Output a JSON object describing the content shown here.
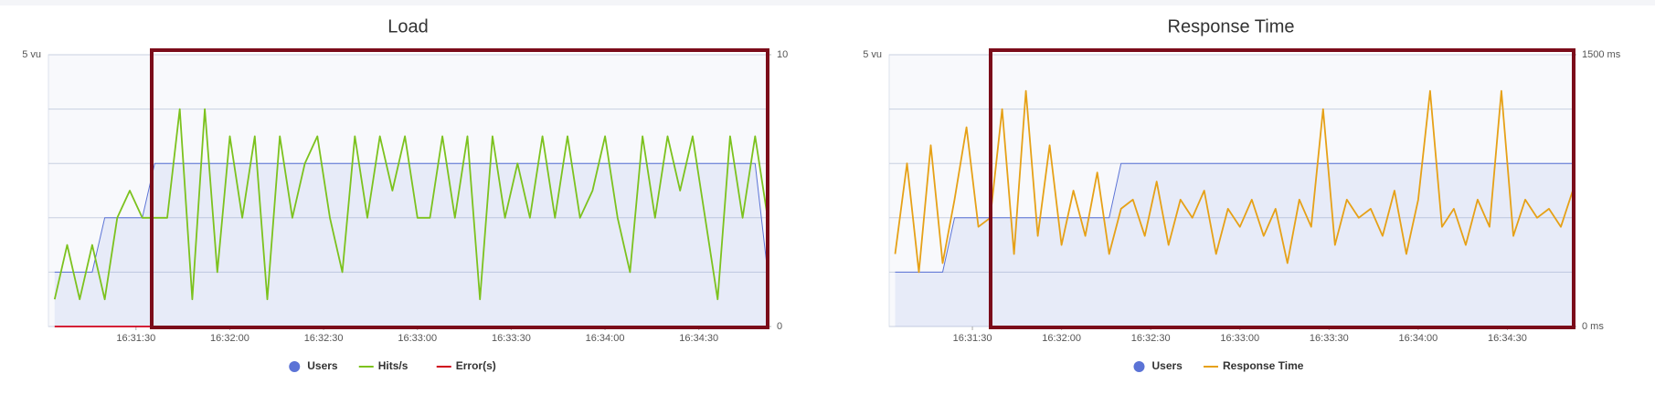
{
  "chart_data": [
    {
      "type": "line",
      "title": "Load",
      "x": [
        59464,
        59468,
        59472,
        59476,
        59480,
        59484,
        59488,
        59492,
        59496,
        59500,
        59504,
        59508,
        59512,
        59516,
        59520,
        59524,
        59528,
        59532,
        59536,
        59540,
        59544,
        59548,
        59552,
        59556,
        59560,
        59564,
        59568,
        59572,
        59576,
        59580,
        59584,
        59588,
        59592,
        59596,
        59600,
        59604,
        59608,
        59612,
        59616,
        59620,
        59624,
        59628,
        59632,
        59636,
        59640,
        59644,
        59648,
        59652,
        59656,
        59660,
        59664,
        59668,
        59672,
        59676,
        59680,
        59684,
        59688,
        59692
      ],
      "xlim": [
        59462,
        59692
      ],
      "xticks": [
        {
          "value": 59490,
          "label": "16:31:30"
        },
        {
          "value": 59520,
          "label": "16:32:00"
        },
        {
          "value": 59550,
          "label": "16:32:30"
        },
        {
          "value": 59580,
          "label": "16:33:00"
        },
        {
          "value": 59610,
          "label": "16:33:30"
        },
        {
          "value": 59640,
          "label": "16:34:00"
        },
        {
          "value": 59670,
          "label": "16:34:30"
        }
      ],
      "ylim": [
        0,
        5
      ],
      "yticks": [
        {
          "value": 0,
          "label": null
        },
        {
          "value": 1,
          "label": null
        },
        {
          "value": 2,
          "label": null
        },
        {
          "value": 3,
          "label": null
        },
        {
          "value": 4,
          "label": null
        },
        {
          "value": 5,
          "label": "5 vu"
        }
      ],
      "y2lim": [
        0,
        10
      ],
      "y2ticks": [
        0,
        10
      ],
      "series": [
        {
          "name": "Users",
          "color": "#5b73d6",
          "values": [
            1,
            1,
            1,
            1,
            2,
            2,
            2,
            2,
            3,
            3,
            3,
            3,
            3,
            3,
            3,
            3,
            3,
            3,
            3,
            3,
            3,
            3,
            3,
            3,
            3,
            3,
            3,
            3,
            3,
            3,
            3,
            3,
            3,
            3,
            3,
            3,
            3,
            3,
            3,
            3,
            3,
            3,
            3,
            3,
            3,
            3,
            3,
            3,
            3,
            3,
            3,
            3,
            3,
            3,
            3,
            3,
            3,
            1
          ]
        },
        {
          "name": "Hits/s",
          "color": "#7cc21e",
          "axis": "y2",
          "values": [
            1,
            3,
            1,
            3,
            1,
            4,
            5,
            4,
            4,
            4,
            8,
            1,
            8,
            2,
            7,
            4,
            7,
            1,
            7,
            4,
            6,
            7,
            4,
            2,
            7,
            4,
            7,
            5,
            7,
            4,
            4,
            7,
            4,
            7,
            1,
            7,
            4,
            6,
            4,
            7,
            4,
            7,
            4,
            5,
            7,
            4,
            2,
            7,
            4,
            7,
            5,
            7,
            4,
            1,
            7,
            4,
            7,
            4
          ]
        },
        {
          "name": "Error(s)",
          "color": "#d0021b",
          "axis": "y2",
          "values": [
            0,
            0,
            0,
            0,
            0,
            0,
            0,
            0,
            0,
            0,
            0,
            0,
            0,
            0,
            0,
            0,
            0,
            0,
            0,
            0,
            0,
            0,
            0,
            0,
            0,
            0,
            0,
            0,
            0,
            0,
            0,
            0,
            0,
            0,
            0,
            0,
            0,
            0,
            0,
            0,
            0,
            0,
            0,
            0,
            0,
            0,
            0,
            0,
            0,
            0,
            0,
            0,
            0,
            0,
            0,
            0,
            0,
            0
          ]
        }
      ]
    },
    {
      "type": "line",
      "title": "Response Time",
      "x": [
        59464,
        59468,
        59472,
        59476,
        59480,
        59484,
        59488,
        59492,
        59496,
        59500,
        59504,
        59508,
        59512,
        59516,
        59520,
        59524,
        59528,
        59532,
        59536,
        59540,
        59544,
        59548,
        59552,
        59556,
        59560,
        59564,
        59568,
        59572,
        59576,
        59580,
        59584,
        59588,
        59592,
        59596,
        59600,
        59604,
        59608,
        59612,
        59616,
        59620,
        59624,
        59628,
        59632,
        59636,
        59640,
        59644,
        59648,
        59652,
        59656,
        59660,
        59664,
        59668,
        59672,
        59676,
        59680,
        59684,
        59688,
        59692
      ],
      "xlim": [
        59462,
        59692
      ],
      "xticks": [
        {
          "value": 59490,
          "label": "16:31:30"
        },
        {
          "value": 59520,
          "label": "16:32:00"
        },
        {
          "value": 59550,
          "label": "16:32:30"
        },
        {
          "value": 59580,
          "label": "16:33:00"
        },
        {
          "value": 59610,
          "label": "16:33:30"
        },
        {
          "value": 59640,
          "label": "16:34:00"
        },
        {
          "value": 59670,
          "label": "16:34:30"
        }
      ],
      "ylim": [
        0,
        5
      ],
      "yticks": [
        {
          "value": 0,
          "label": null
        },
        {
          "value": 1,
          "label": null
        },
        {
          "value": 2,
          "label": null
        },
        {
          "value": 3,
          "label": null
        },
        {
          "value": 4,
          "label": null
        },
        {
          "value": 5,
          "label": "5 vu"
        }
      ],
      "y2lim": [
        0,
        1500
      ],
      "y2ticks": [
        {
          "value": 0,
          "label": "0 ms"
        },
        {
          "value": 1500,
          "label": "1500 ms"
        }
      ],
      "series": [
        {
          "name": "Users",
          "color": "#5b73d6",
          "values": [
            1,
            1,
            1,
            1,
            1,
            2,
            2,
            2,
            2,
            2,
            2,
            2,
            2,
            2,
            2,
            2,
            2,
            2,
            2,
            3,
            3,
            3,
            3,
            3,
            3,
            3,
            3,
            3,
            3,
            3,
            3,
            3,
            3,
            3,
            3,
            3,
            3,
            3,
            3,
            3,
            3,
            3,
            3,
            3,
            3,
            3,
            3,
            3,
            3,
            3,
            3,
            3,
            3,
            3,
            3,
            3,
            3,
            3
          ]
        },
        {
          "name": "Response Time",
          "color": "#e6a117",
          "axis": "y2",
          "values": [
            400,
            900,
            300,
            1000,
            350,
            700,
            1100,
            550,
            600,
            1200,
            400,
            1300,
            500,
            1000,
            450,
            750,
            500,
            850,
            400,
            650,
            700,
            500,
            800,
            450,
            700,
            600,
            750,
            400,
            650,
            550,
            700,
            500,
            650,
            350,
            700,
            550,
            1200,
            450,
            700,
            600,
            650,
            500,
            750,
            400,
            700,
            1300,
            550,
            650,
            450,
            700,
            550,
            1300,
            500,
            700,
            600,
            650,
            550,
            750
          ]
        }
      ]
    }
  ]
}
